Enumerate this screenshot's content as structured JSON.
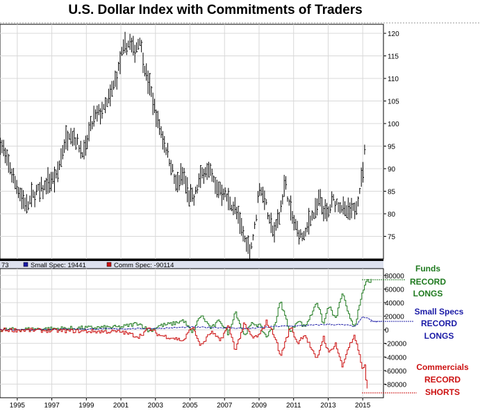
{
  "chart_data": [
    {
      "type": "ohlc",
      "title": "U.S. Dollar Index with Commitments of Traders",
      "ylim": [
        70,
        122
      ],
      "yticks": [
        75,
        80,
        85,
        90,
        95,
        100,
        105,
        110,
        115,
        120
      ],
      "x_start": 1994.0,
      "x_end": 2016.2,
      "anchors": [
        [
          1994.0,
          96
        ],
        [
          1994.3,
          93
        ],
        [
          1994.6,
          90
        ],
        [
          1995.0,
          86
        ],
        [
          1995.3,
          83
        ],
        [
          1995.6,
          82
        ],
        [
          1995.9,
          84
        ],
        [
          1996.2,
          85
        ],
        [
          1996.6,
          86
        ],
        [
          1996.9,
          87
        ],
        [
          1997.3,
          88
        ],
        [
          1997.6,
          94
        ],
        [
          1998.0,
          98
        ],
        [
          1998.3,
          97
        ],
        [
          1998.6,
          95
        ],
        [
          1998.9,
          93
        ],
        [
          1999.2,
          99
        ],
        [
          1999.6,
          102
        ],
        [
          2000.0,
          103
        ],
        [
          2000.4,
          106
        ],
        [
          2000.8,
          111
        ],
        [
          2001.1,
          116
        ],
        [
          2001.5,
          118
        ],
        [
          2001.8,
          116
        ],
        [
          2002.1,
          119
        ],
        [
          2002.4,
          112
        ],
        [
          2002.8,
          106
        ],
        [
          2003.1,
          101
        ],
        [
          2003.5,
          96
        ],
        [
          2003.9,
          91
        ],
        [
          2004.2,
          86
        ],
        [
          2004.6,
          89
        ],
        [
          2004.9,
          84
        ],
        [
          2005.2,
          83
        ],
        [
          2005.5,
          87
        ],
        [
          2005.9,
          90
        ],
        [
          2006.2,
          89
        ],
        [
          2006.5,
          86
        ],
        [
          2006.9,
          85
        ],
        [
          2007.2,
          83
        ],
        [
          2007.6,
          81
        ],
        [
          2007.9,
          78
        ],
        [
          2008.2,
          74
        ],
        [
          2008.5,
          72
        ],
        [
          2008.8,
          78
        ],
        [
          2009.0,
          86
        ],
        [
          2009.3,
          84
        ],
        [
          2009.6,
          78
        ],
        [
          2009.9,
          76
        ],
        [
          2010.2,
          80
        ],
        [
          2010.5,
          87
        ],
        [
          2010.8,
          81
        ],
        [
          2011.1,
          77
        ],
        [
          2011.4,
          75
        ],
        [
          2011.7,
          75
        ],
        [
          2011.9,
          79
        ],
        [
          2012.2,
          80
        ],
        [
          2012.5,
          83
        ],
        [
          2012.8,
          80
        ],
        [
          2013.0,
          80
        ],
        [
          2013.3,
          83
        ],
        [
          2013.6,
          82
        ],
        [
          2013.9,
          81
        ],
        [
          2014.2,
          80
        ],
        [
          2014.5,
          81
        ],
        [
          2014.7,
          83
        ],
        [
          2014.9,
          87
        ],
        [
          2015.05,
          91
        ],
        [
          2015.15,
          95
        ]
      ]
    },
    {
      "type": "line",
      "ylim": [
        -100000,
        90000
      ],
      "yticks": [
        80000,
        60000,
        40000,
        20000,
        0,
        -20000,
        -40000,
        -60000,
        -80000
      ],
      "ytick_labels": [
        "80000",
        "60000",
        "40000",
        "20000",
        "0",
        "-20000",
        "-40000",
        "-60000",
        "-80000"
      ],
      "xticks": [
        1995,
        1997,
        1999,
        2001,
        2003,
        2005,
        2007,
        2009,
        2011,
        2013,
        2015
      ],
      "legend": [
        {
          "text": "73",
          "color": "#000000"
        },
        {
          "text": "Small Spec: 19441",
          "color": "#1a1aa6"
        },
        {
          "text": "Comm Spec: -90114",
          "color": "#cc1111"
        }
      ],
      "series": [
        {
          "color": "#1f7a1f",
          "anchors": [
            [
              1994.0,
              0
            ],
            [
              2001.0,
              4000
            ],
            [
              2002.0,
              10000
            ],
            [
              2002.6,
              -2000
            ],
            [
              2003.2,
              6000
            ],
            [
              2004.0,
              9000
            ],
            [
              2004.6,
              14000
            ],
            [
              2005.1,
              -5000
            ],
            [
              2005.6,
              22000
            ],
            [
              2006.2,
              2000
            ],
            [
              2006.7,
              14000
            ],
            [
              2007.2,
              -6000
            ],
            [
              2007.6,
              28000
            ],
            [
              2008.1,
              -8000
            ],
            [
              2008.6,
              10000
            ],
            [
              2009.0,
              6000
            ],
            [
              2009.4,
              -10000
            ],
            [
              2009.9,
              8000
            ],
            [
              2010.2,
              42000
            ],
            [
              2010.8,
              -5000
            ],
            [
              2011.2,
              15000
            ],
            [
              2011.6,
              4000
            ],
            [
              2012.0,
              22000
            ],
            [
              2012.3,
              43000
            ],
            [
              2012.7,
              8000
            ],
            [
              2013.0,
              36000
            ],
            [
              2013.4,
              15000
            ],
            [
              2013.8,
              55000
            ],
            [
              2014.1,
              25000
            ],
            [
              2014.5,
              5000
            ],
            [
              2014.8,
              35000
            ],
            [
              2015.0,
              58000
            ],
            [
              2015.2,
              72000
            ],
            [
              2015.5,
              72000
            ]
          ]
        },
        {
          "color": "#1a1aa6",
          "anchors": [
            [
              1994.0,
              0
            ],
            [
              2003.0,
              2000
            ],
            [
              2005.0,
              4000
            ],
            [
              2007.0,
              3000
            ],
            [
              2008.5,
              2000
            ],
            [
              2010.0,
              5000
            ],
            [
              2011.5,
              6000
            ],
            [
              2013.0,
              8000
            ],
            [
              2014.0,
              7000
            ],
            [
              2014.6,
              5000
            ],
            [
              2015.0,
              19000
            ],
            [
              2015.3,
              17000
            ],
            [
              2015.6,
              12000
            ],
            [
              2016.0,
              12000
            ]
          ]
        },
        {
          "color": "#cc1111",
          "anchors": [
            [
              1994.0,
              0
            ],
            [
              2001.0,
              -3000
            ],
            [
              2002.0,
              -10000
            ],
            [
              2002.6,
              2000
            ],
            [
              2003.2,
              -8000
            ],
            [
              2004.0,
              -12000
            ],
            [
              2004.6,
              -16000
            ],
            [
              2005.1,
              5000
            ],
            [
              2005.6,
              -24000
            ],
            [
              2006.2,
              -3000
            ],
            [
              2006.7,
              -16000
            ],
            [
              2007.2,
              6000
            ],
            [
              2007.6,
              -30000
            ],
            [
              2008.1,
              8000
            ],
            [
              2008.6,
              -12000
            ],
            [
              2009.0,
              -8000
            ],
            [
              2009.4,
              12000
            ],
            [
              2009.9,
              -10000
            ],
            [
              2010.2,
              -40000
            ],
            [
              2010.8,
              5000
            ],
            [
              2011.2,
              -20000
            ],
            [
              2011.6,
              -6000
            ],
            [
              2012.0,
              -28000
            ],
            [
              2012.3,
              -45000
            ],
            [
              2012.7,
              -10000
            ],
            [
              2013.0,
              -35000
            ],
            [
              2013.4,
              -20000
            ],
            [
              2013.8,
              -55000
            ],
            [
              2014.1,
              -28000
            ],
            [
              2014.5,
              -10000
            ],
            [
              2014.8,
              -40000
            ],
            [
              2015.0,
              -60000
            ],
            [
              2015.1,
              -50000
            ],
            [
              2015.2,
              -85000
            ],
            [
              2015.3,
              -90000
            ]
          ]
        }
      ],
      "annotations": [
        {
          "lines": [
            "Funds",
            "RECORD",
            "LONGS"
          ],
          "color": "#1f7a1f"
        },
        {
          "lines": [
            "Small Specs",
            "RECORD",
            "LONGS"
          ],
          "color": "#1a1aa6"
        },
        {
          "lines": [
            "Commercials",
            "RECORD",
            "SHORTS"
          ],
          "color": "#cc1111"
        }
      ]
    }
  ]
}
